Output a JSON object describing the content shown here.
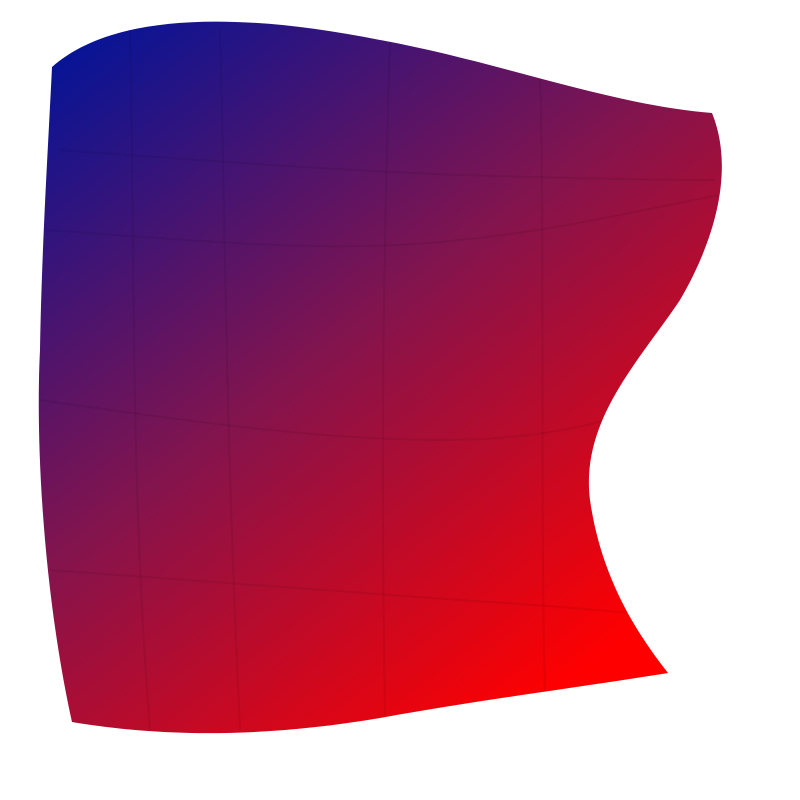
{
  "scene": {
    "background": "#ffffff",
    "surface": {
      "name": "warped-surface",
      "gradient_start_color": "#00149a",
      "gradient_mid_color": "#82144e",
      "gradient_end_color": "#ff0000",
      "grid_lines_visible": true
    }
  }
}
